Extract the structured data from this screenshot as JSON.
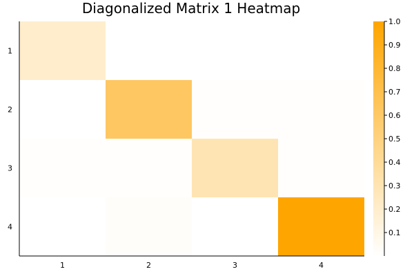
{
  "chart_data": {
    "type": "heatmap",
    "title": "Diagonalized Matrix 1 Heatmap",
    "x_categories": [
      "1",
      "2",
      "3",
      "4"
    ],
    "y_categories": [
      "1",
      "2",
      "3",
      "4"
    ],
    "values": [
      [
        0.2,
        0.0,
        0.0,
        0.0
      ],
      [
        0.0,
        0.62,
        0.01,
        0.01
      ],
      [
        0.01,
        0.01,
        0.3,
        0.01
      ],
      [
        0.0,
        0.02,
        0.0,
        1.0
      ]
    ],
    "colorscale": {
      "low": "#ffffff",
      "high": "#ffa500"
    },
    "colorbar": {
      "range": [
        0.0,
        1.0
      ],
      "ticks": [
        0.1,
        0.2,
        0.3,
        0.4,
        0.5,
        0.6,
        0.7,
        0.8,
        0.9,
        1.0
      ],
      "tick_labels": [
        "0.1",
        "0.2",
        "0.3",
        "0.4",
        "0.5",
        "0.6",
        "0.7",
        "0.8",
        "0.9",
        "1.0"
      ]
    },
    "xlabel": "",
    "ylabel": "",
    "grid": false,
    "legend": "right (colorbar)"
  }
}
